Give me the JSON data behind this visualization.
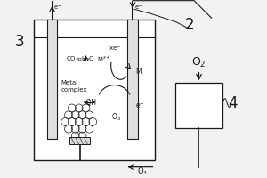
{
  "bg_color": "#f2f2f2",
  "dark": "#1a1a1a",
  "light_gray": "#d0d0d0",
  "label3": "3",
  "label2": "2",
  "label4": "4",
  "text_co2": "CO",
  "text_h2o": "H",
  "text_mxplus": "M",
  "text_xe": "xe",
  "text_M": "M",
  "text_metal": "Metal\ncomplex",
  "text_OH": "•OH",
  "text_O3_inside": "O",
  "text_O3_bottom": "O",
  "text_O2": "O",
  "text_eminus": "e"
}
